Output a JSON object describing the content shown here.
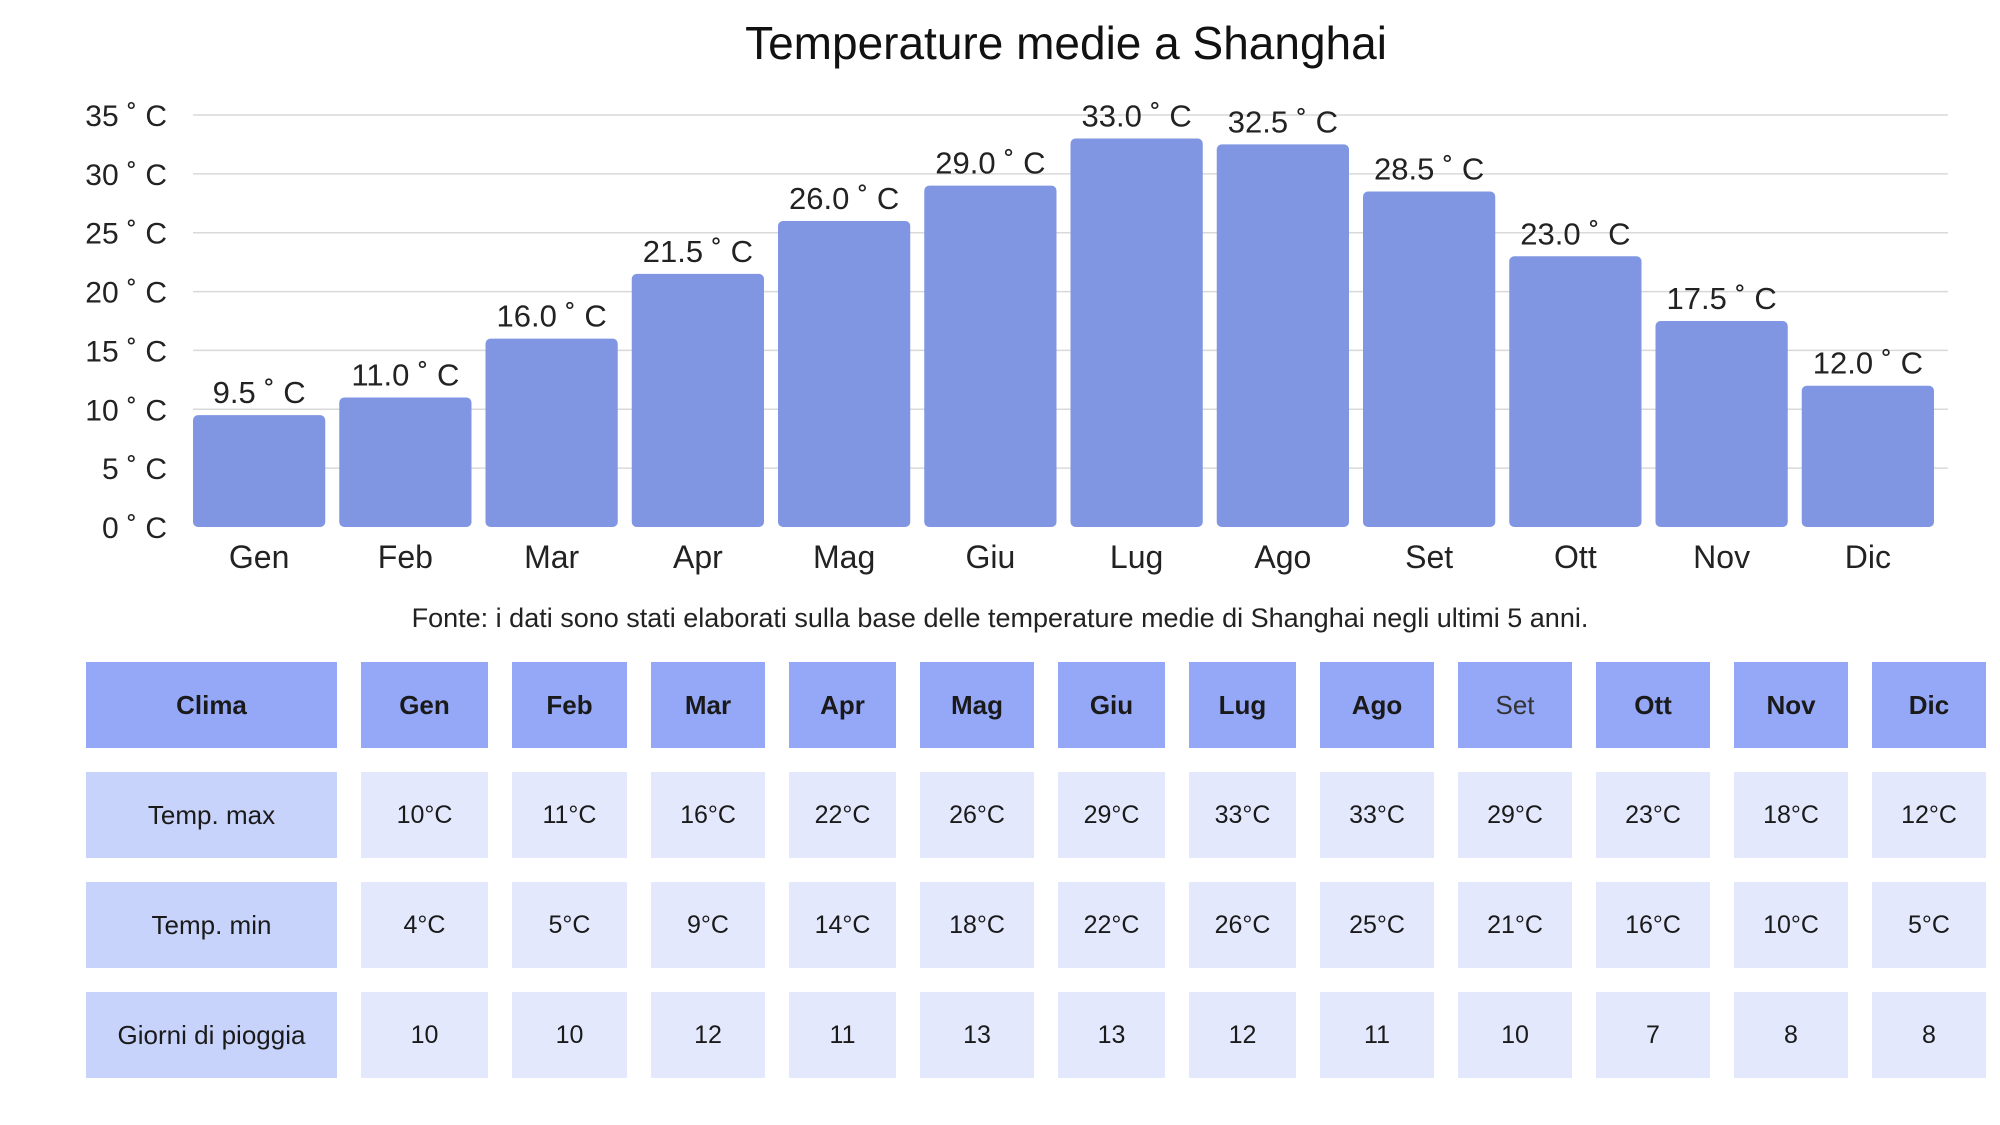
{
  "chart_data": {
    "type": "bar",
    "title": "Temperature medie a Shanghai",
    "categories": [
      "Gen",
      "Feb",
      "Mar",
      "Apr",
      "Mag",
      "Giu",
      "Lug",
      "Ago",
      "Set",
      "Ott",
      "Nov",
      "Dic"
    ],
    "values": [
      9.5,
      11.0,
      16.0,
      21.5,
      26.0,
      29.0,
      33.0,
      32.5,
      28.5,
      23.0,
      17.5,
      12.0
    ],
    "value_labels": [
      "9.5 ˚ C",
      "11.0 ˚ C",
      "16.0 ˚ C",
      "21.5 ˚ C",
      "26.0 ˚ C",
      "29.0 ˚ C",
      "33.0 ˚ C",
      "32.5 ˚ C",
      "28.5 ˚ C",
      "23.0 ˚ C",
      "17.5 ˚ C",
      "12.0 ˚ C"
    ],
    "yticks": [
      0,
      5,
      10,
      15,
      20,
      25,
      30,
      35
    ],
    "ytick_labels": [
      "0 ˚ C",
      "5 ˚ C",
      "10 ˚ C",
      "15 ˚ C",
      "20 ˚ C",
      "25 ˚ C",
      "30 ˚ C",
      "35 ˚ C"
    ],
    "ylim": [
      0,
      35
    ],
    "xlabel": "",
    "ylabel": "",
    "grid": true,
    "bar_color": "#8096e2"
  },
  "source_note": "Fonte: i dati sono stati elaborati sulla base delle temperature medie di Shanghai negli ultimi 5 anni.",
  "table": {
    "header": [
      "Clima",
      "Gen",
      "Feb",
      "Mar",
      "Apr",
      "Mag",
      "Giu",
      "Lug",
      "Ago",
      "Set",
      "Ott",
      "Nov",
      "Dic"
    ],
    "rows": [
      {
        "label": "Temp. max",
        "cells": [
          "10°C",
          "11°C",
          "16°C",
          "22°C",
          "26°C",
          "29°C",
          "33°C",
          "33°C",
          "29°C",
          "23°C",
          "18°C",
          "12°C"
        ]
      },
      {
        "label": "Temp. min",
        "cells": [
          "4°C",
          "5°C",
          "9°C",
          "14°C",
          "18°C",
          "22°C",
          "26°C",
          "25°C",
          "21°C",
          "16°C",
          "10°C",
          "5°C"
        ]
      },
      {
        "label": "Giorni di pioggia",
        "cells": [
          "10",
          "10",
          "12",
          "11",
          "13",
          "13",
          "12",
          "11",
          "10",
          "7",
          "8",
          "8"
        ]
      }
    ],
    "colors": {
      "header_bg": "#95a8f8",
      "row_head_bg": "#c8d3fb",
      "cell_bg": "#e3e8fc"
    }
  }
}
